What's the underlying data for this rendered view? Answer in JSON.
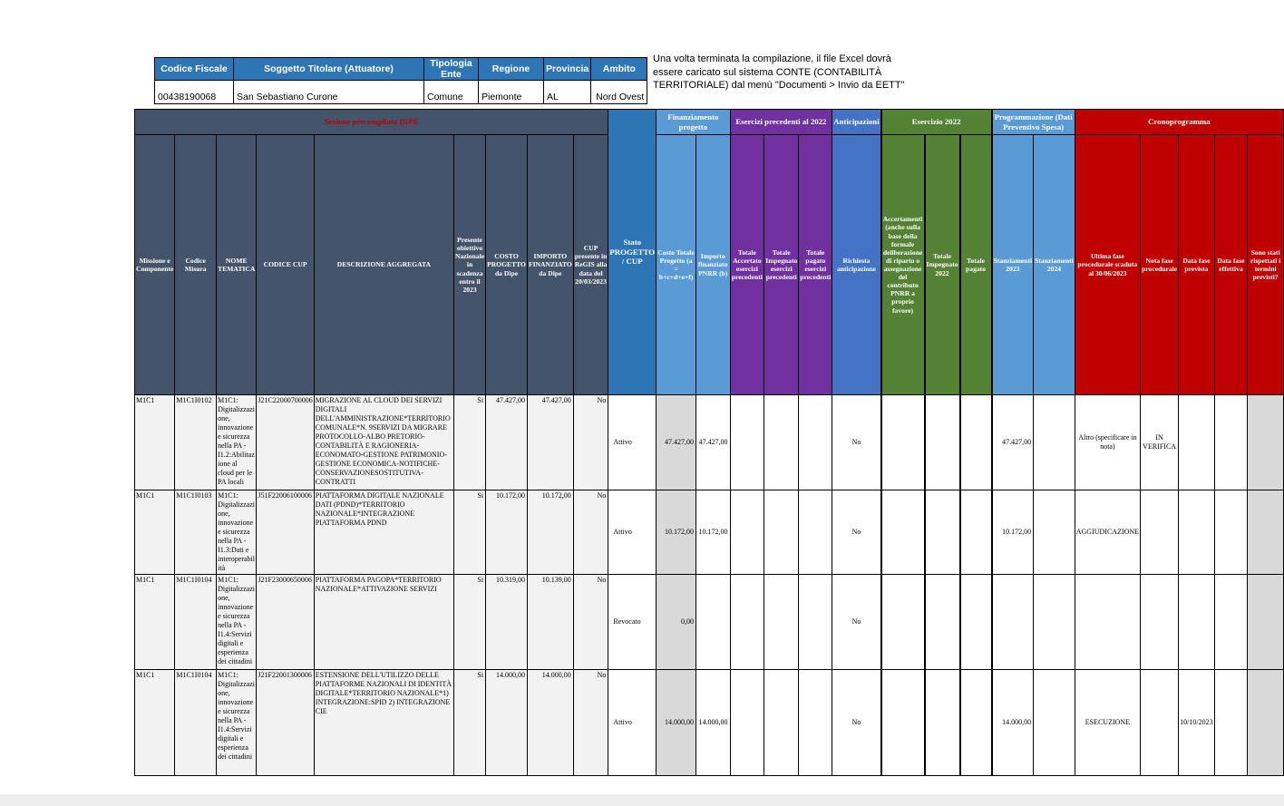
{
  "info_table": {
    "headers": [
      "Codice Fiscale",
      "Soggetto Titolare (Attuatore)",
      "Tipologia Ente",
      "Regione",
      "Provincia",
      "Ambito"
    ],
    "values": [
      "00438190068",
      "San Sebastiano Curone",
      "Comune",
      "Piemonte",
      "AL",
      "Nord Ovest"
    ]
  },
  "note": {
    "text": "Una volta terminata la compilazione, il file Excel dovrà essere caricato sul sistema CONTE (CONTABILITÀ TERRITORIALE) dal menù \"Documenti > Invio da EETT\""
  },
  "colors": {
    "dark_slate": "#44546A",
    "section_title_red": "#C00000",
    "medium_blue": "#2E75B6",
    "light_blue": "#5B9BD5",
    "purple": "#7030A0",
    "blue": "#4472C4",
    "green": "#548235",
    "red": "#C00000",
    "shaded_cell": "#D9D9D9",
    "row_gray": "#F2F2F2"
  },
  "main_table": {
    "groups": [
      {
        "label": "Sezione precompilata DIPE",
        "span": 9,
        "color": "dark_slate",
        "title_red": true
      },
      {
        "label": "Finanziamento progetto",
        "span": 2,
        "color": "light_blue"
      },
      {
        "label": "Esercizi precedenti al 2022",
        "span": 3,
        "color": "purple"
      },
      {
        "label": "Anticipazioni",
        "span": 1,
        "color": "blue"
      },
      {
        "label": "Esercizio 2022",
        "span": 3,
        "color": "green"
      },
      {
        "label": "Programmazione (Dati Preventivo Spesa)",
        "span": 2,
        "color": "light_blue"
      },
      {
        "label": "Cronoprogramma",
        "span": 5,
        "color": "red"
      }
    ],
    "columns": [
      "Missione e Componente",
      "Codice Misura",
      "NOME TEMATICA",
      "CODICE CUP",
      "DESCRIZIONE AGGREGATA",
      "Presente obiettivo Nazionale in scadenza entro il 2023",
      "COSTO PROGETTO da Dipe",
      "IMPORTO FINANZIATO da Dipe",
      "CUP presente in ReGIS alla data del 20/03/2023",
      "Stato PROGETTO / CUP",
      "Costo Totale Progetto (a = b+c+d+e+f)",
      "Importo finanziato PNRR (b)",
      "Totale Accertato esercizi precedenti",
      "Totale Impegnato esercizi precedenti",
      "Totale pagato esercizi precedenti",
      "Richiesta anticipazione",
      "Accertamenti (anche sulla base della formale deliberazione di riparto o assegnazione del contributo PNRR a proprio favore)",
      "Totale Impegnato 2022",
      "Totale pagato",
      "Stanziamenti 2023",
      "Stanziamenti 2024",
      "Ultima fase procedurale scaduta al 30/06/2023",
      "Nota fase procedurale",
      "Data fase prevista",
      "Data fase effettiva",
      "Sono stati rispettati i termini previsti?"
    ],
    "rows": [
      {
        "cells": [
          "M1C1",
          "M1C1I0102",
          "M1C1: Digitalizzazione, innovazione e sicurezza nella PA - I1.2:Abilitazione al cloud per le PA locali",
          "J21C22000700006",
          "MIGRAZIONE AL CLOUD DEI SERVIZI DIGITALI DELL'AMMINISTRAZIONE*TERRITORIO COMUNALE*N. 9SERVIZI DA MIGRARE PROTOCOLLO-ALBO PRETORIO-CONTABILITÀ E RAGIONERIA-ECONOMATO-GESTIONE PATRIMONIO-GESTIONE ECONOMICA-NOTIFICHE-CONSERVAZIONESOSTITUTIVA-CONTRATTI",
          "Si",
          "47.427,00",
          "47.427,00",
          "No",
          "Attivo",
          "47.427,00",
          "47.427,00",
          "",
          "",
          "",
          "No",
          "",
          "",
          "",
          "47.427,00",
          "",
          "Altro (specificare in nota)",
          "IN VERIFICA",
          "",
          "",
          ""
        ]
      },
      {
        "cells": [
          "M1C1",
          "M1C1I0103",
          "M1C1: Digitalizzazione, innovazione e sicurezza nella PA - I1.3:Dati e interoperabilità",
          "J51F22006100006",
          "PIATTAFORMA DIGITALE NAZIONALE DATI (PDND)*TERRITORIO NAZIONALE*INTEGRAZIONE PIATTAFORMA PDND",
          "Si",
          "10.172,00",
          "10.172,00",
          "No",
          "Attivo",
          "10.172,00",
          "10.172,00",
          "",
          "",
          "",
          "No",
          "",
          "",
          "",
          "10.172,00",
          "",
          "AGGIUDICAZIONE",
          "",
          "",
          "",
          ""
        ]
      },
      {
        "cells": [
          "M1C1",
          "M1C1I0104",
          "M1C1: Digitalizzazione, innovazione e sicurezza nella PA - I1.4:Servizi digitali e esperienza dei cittadini",
          "J21F23000650006",
          "PIATTAFORMA PAGOPA*TERRITORIO NAZIONALE*ATTIVAZIONE SERVIZI",
          "Si",
          "10.319,00",
          "10.139,00",
          "No",
          "Revocato",
          "0,00",
          "",
          "",
          "",
          "",
          "No",
          "",
          "",
          "",
          "",
          "",
          "",
          "",
          "",
          "",
          ""
        ]
      },
      {
        "cells": [
          "M1C1",
          "M1C1I0104",
          "M1C1: Digitalizzazione, innovazione e sicurezza nella PA - I1.4:Servizi digitali e esperienza dei cittadini",
          "J21F22001300006",
          "ESTENSIONE DELL'UTILIZZO DELLE PIATTAFORME NAZIONALI DI IDENTITÀ DIGITALE*TERRITORIO NAZIONALE*1) INTEGRAZIONE:SPID 2) INTEGRAZIONE CIE",
          "Si",
          "14.000,00",
          "14.000,00",
          "No",
          "Attivo",
          "14.000,00",
          "14.000,00",
          "",
          "",
          "",
          "No",
          "",
          "",
          "",
          "14.000,00",
          "",
          "ESECUZIONE",
          "",
          "10/10/2023",
          "",
          ""
        ]
      }
    ]
  }
}
